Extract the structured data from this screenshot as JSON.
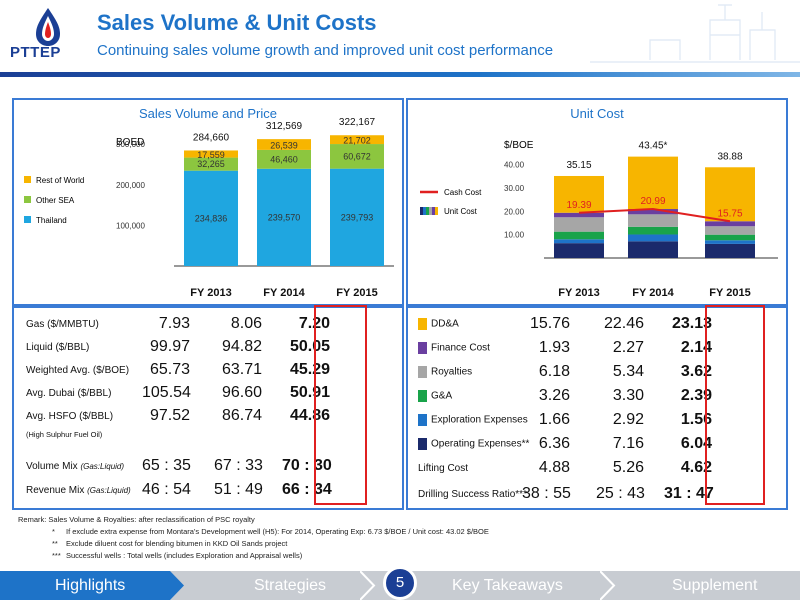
{
  "header": {
    "logo_text": "PTTEP",
    "title": "Sales Volume & Unit Costs",
    "subtitle": "Continuing sales volume growth and improved unit cost performance"
  },
  "colors": {
    "thailand": "#1fa6e0",
    "other_sea": "#8cc63f",
    "rest_of_world": "#f7b500",
    "dda": "#f7b500",
    "finance_cost": "#6a3fa0",
    "royalties": "#a6a6a6",
    "ga": "#19a34a",
    "exploration": "#1e73c8",
    "operating": "#1b2a6b",
    "cash_cost_line": "#e02020",
    "highlight_box": "#e02020",
    "accent": "#1e73c8"
  },
  "chart_data": [
    {
      "type": "bar",
      "stacked": true,
      "title": "Sales Volume and Price",
      "ylabel": "BOED",
      "categories": [
        "FY 2013",
        "FY 2014",
        "FY 2015"
      ],
      "yticks": [
        "100,000",
        "200,000",
        "300,000"
      ],
      "ylim": [
        0,
        340000
      ],
      "totals": [
        "284,660",
        "312,569",
        "322,167"
      ],
      "series": [
        {
          "name": "Thailand",
          "values": [
            234836,
            239570,
            239793
          ],
          "labels": [
            "234,836",
            "239,570",
            "239,793"
          ],
          "color_key": "thailand"
        },
        {
          "name": "Other SEA",
          "values": [
            32265,
            46460,
            60672
          ],
          "labels": [
            "32,265",
            "46,460",
            "60,672"
          ],
          "color_key": "other_sea"
        },
        {
          "name": "Rest of World",
          "values": [
            17559,
            26539,
            21702
          ],
          "labels": [
            "17,559",
            "26,539",
            "21,702"
          ],
          "color_key": "rest_of_world"
        }
      ],
      "legend": [
        "Rest of World",
        "Other SEA",
        "Thailand"
      ],
      "legend_position": "left"
    },
    {
      "type": "bar",
      "stacked": true,
      "title": "Unit Cost",
      "ylabel": "$/BOE",
      "categories": [
        "FY 2013",
        "FY 2014",
        "FY 2015"
      ],
      "yticks": [
        "10.00",
        "20.00",
        "30.00",
        "40.00"
      ],
      "ylim": [
        0,
        48
      ],
      "totals": [
        "35.15",
        "43.45*",
        "38.88"
      ],
      "series": [
        {
          "name": "Operating Expenses**",
          "values": [
            6.36,
            7.16,
            6.04
          ],
          "color_key": "operating"
        },
        {
          "name": "Exploration Expenses",
          "values": [
            1.66,
            2.92,
            1.56
          ],
          "color_key": "exploration"
        },
        {
          "name": "G&A",
          "values": [
            3.26,
            3.3,
            2.39
          ],
          "color_key": "ga"
        },
        {
          "name": "Royalties",
          "values": [
            6.18,
            5.34,
            3.62
          ],
          "color_key": "royalties"
        },
        {
          "name": "Finance Cost",
          "values": [
            1.93,
            2.27,
            2.14
          ],
          "color_key": "finance_cost"
        },
        {
          "name": "DD&A",
          "values": [
            15.76,
            22.46,
            23.13
          ],
          "color_key": "dda"
        }
      ],
      "line": {
        "name": "Cash Cost",
        "values": [
          19.39,
          20.99,
          15.75
        ],
        "labels": [
          "19.39",
          "20.99",
          "15.75"
        ]
      },
      "legend": [
        "Cash Cost",
        "Unit Cost"
      ],
      "legend_position": "left"
    }
  ],
  "left_table": {
    "rows": [
      {
        "label": "Gas ($/MMBTU)",
        "v": [
          "7.93",
          "8.06",
          "7.20"
        ]
      },
      {
        "label": "Liquid ($/BBL)",
        "v": [
          "99.97",
          "94.82",
          "50.05"
        ]
      },
      {
        "label": "Weighted Avg. ($/BOE)",
        "v": [
          "65.73",
          "63.71",
          "45.29"
        ]
      },
      {
        "label": "Avg. Dubai ($/BBL)",
        "v": [
          "105.54",
          "96.60",
          "50.91"
        ]
      },
      {
        "label": "Avg. HSFO ($/BBL)",
        "v": [
          "97.52",
          "86.74",
          "44.86"
        ]
      }
    ],
    "hsfo_note": "(High Sulphur Fuel Oil)",
    "mix_rows": [
      {
        "label": "Volume Mix ",
        "sub": "(Gas:Liquid)",
        "v": [
          "65 : 35",
          "67 : 33",
          "70 : 30"
        ]
      },
      {
        "label": "Revenue Mix ",
        "sub": "(Gas:Liquid)",
        "v": [
          "46 : 54",
          "51 : 49",
          "66 : 34"
        ]
      }
    ]
  },
  "right_table": {
    "rows": [
      {
        "label": "DD&A",
        "color_key": "dda",
        "v": [
          "15.76",
          "22.46",
          "23.13"
        ]
      },
      {
        "label": "Finance Cost",
        "color_key": "finance_cost",
        "v": [
          "1.93",
          "2.27",
          "2.14"
        ]
      },
      {
        "label": "Royalties",
        "color_key": "royalties",
        "v": [
          "6.18",
          "5.34",
          "3.62"
        ]
      },
      {
        "label": "G&A",
        "color_key": "ga",
        "v": [
          "3.26",
          "3.30",
          "2.39"
        ]
      },
      {
        "label": "Exploration Expenses",
        "color_key": "exploration",
        "v": [
          "1.66",
          "2.92",
          "1.56"
        ]
      },
      {
        "label": "Operating Expenses**",
        "color_key": "operating",
        "v": [
          "6.36",
          "7.16",
          "6.04"
        ]
      }
    ],
    "summary_rows": [
      {
        "label": "Lifting Cost",
        "v": [
          "4.88",
          "5.26",
          "4.62"
        ]
      },
      {
        "label": "Drilling Success Ratio***",
        "v": [
          "38 : 55",
          "25 : 43",
          "31 : 47"
        ]
      }
    ]
  },
  "remarks": {
    "intro": "Remark:  Sales Volume & Royalties: after reclassification of PSC royalty",
    "lines": [
      {
        "mark": "*",
        "text": "If exclude extra expense from Montara's Development well (H5): For 2014, Operating  Exp: 6.73 $/BOE / Unit cost: 43.02 $/BOE"
      },
      {
        "mark": "**",
        "text": "Exclude diluent cost for blending bitumen in KKD Oil Sands  project"
      },
      {
        "mark": "***",
        "text": "Successful wells : Total wells (includes Exploration and Appraisal wells)"
      }
    ]
  },
  "footer": {
    "tabs": [
      "Highlights",
      "Strategies",
      "Key Takeaways",
      "Supplement"
    ],
    "page": "5"
  }
}
